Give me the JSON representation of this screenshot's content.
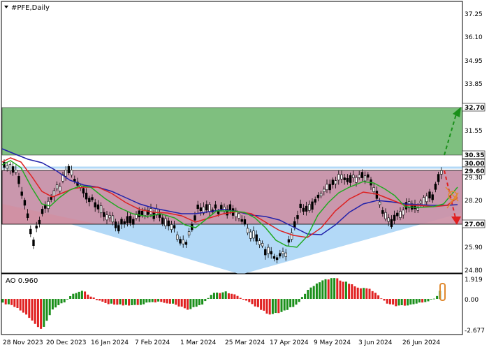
{
  "chart": {
    "symbol_label": "#PFE,Daily",
    "collapse_icon": "triangle-down-icon",
    "price_axis_ticks": [
      "37.25",
      "36.10",
      "34.95",
      "33.85",
      "32.70",
      "31.55",
      "30.35",
      "29.30",
      "28.20",
      "27.00",
      "25.90",
      "24.80"
    ],
    "price_level_tags": [
      {
        "label": "32.70",
        "color": "#000000"
      },
      {
        "label": "30.35",
        "color": "#000000"
      },
      {
        "label": "30.00",
        "color": "#000000"
      },
      {
        "label": "29.60",
        "color": "#000000"
      },
      {
        "label": "27.00",
        "color": "#000000"
      }
    ],
    "time_axis_ticks": [
      "28 Nov 2023",
      "20 Dec 2023",
      "16 Jan 2024",
      "7 Feb 2024",
      "1 Mar 2024",
      "25 Mar 2024",
      "17 Apr 2024",
      "9 May 2024",
      "3 Jun 2024",
      "26 Jun 2024"
    ],
    "zones": [
      {
        "name": "target-zone-upper",
        "color": "#7fbf7f"
      },
      {
        "name": "range-zone",
        "color": "#cc8fa4"
      },
      {
        "name": "support-triangle",
        "color": "#b3d9f7"
      }
    ],
    "series_colors": {
      "fast_ma": "#22aa22",
      "mid_ma": "#dd2222",
      "slow_ma": "#2222aa",
      "candles": "#000000",
      "up_arrow": "#1a8f1a",
      "down_arrow": "#e02020"
    }
  },
  "oscillator": {
    "label": "AO 0.960",
    "axis_ticks": [
      "1.919",
      "0.00",
      "-2.677"
    ],
    "up_color": "#1a8f1a",
    "down_color": "#e02020"
  }
}
